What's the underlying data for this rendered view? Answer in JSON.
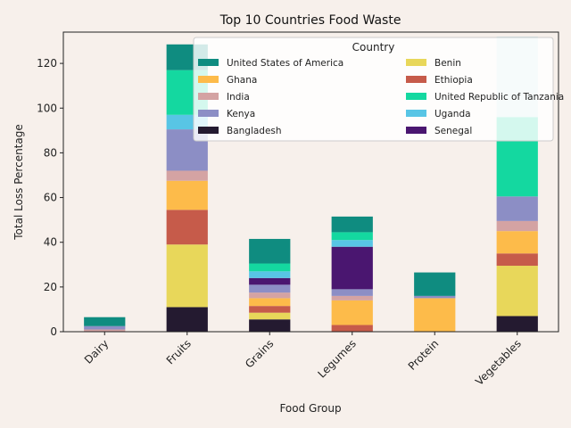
{
  "chart_data": {
    "type": "bar",
    "stacked": true,
    "title": "Top 10 Countries Food Waste",
    "xlabel": "Food Group",
    "ylabel": "Total Loss Percentage",
    "ylim": [
      0,
      134
    ],
    "yticks": [
      0,
      20,
      40,
      60,
      80,
      100,
      120
    ],
    "grid": false,
    "legend_title": "Country",
    "legend_position": "top-right",
    "categories": [
      "Dairy",
      "Fruits",
      "Grains",
      "Legumes",
      "Protein",
      "Vegetables"
    ],
    "series": [
      {
        "name": "Bangladesh",
        "color": "#241a30",
        "values": [
          0,
          11,
          5.5,
          0,
          0,
          7
        ]
      },
      {
        "name": "Benin",
        "color": "#e8d75a",
        "values": [
          0,
          28,
          3,
          0,
          0,
          22.5
        ]
      },
      {
        "name": "Ethiopia",
        "color": "#c65b4a",
        "values": [
          0,
          15.5,
          3,
          3,
          0,
          5.5
        ]
      },
      {
        "name": "Ghana",
        "color": "#fdbb4a",
        "values": [
          0,
          13,
          3.5,
          11,
          15,
          10
        ]
      },
      {
        "name": "India",
        "color": "#d4a3a3",
        "values": [
          1,
          4.5,
          2.5,
          2,
          0,
          4.5
        ]
      },
      {
        "name": "Kenya",
        "color": "#8c8ec5",
        "values": [
          1.5,
          18.5,
          3.5,
          3,
          1,
          11
        ]
      },
      {
        "name": "Senegal",
        "color": "#4a1670",
        "values": [
          0,
          0,
          3,
          19,
          0,
          0
        ]
      },
      {
        "name": "Uganda",
        "color": "#58c5e5",
        "values": [
          0,
          6.5,
          3,
          3,
          0,
          0
        ]
      },
      {
        "name": "United Republic of Tanzania",
        "color": "#14d8a0",
        "values": [
          0,
          20,
          3.5,
          3.5,
          0,
          35.5
        ]
      },
      {
        "name": "United States of America",
        "color": "#0f8c80",
        "values": [
          4,
          11.5,
          11,
          7,
          10.5,
          0
        ]
      },
      {
        "name": "",
        "color": "#cde6e8",
        "values": [
          0,
          0,
          0,
          0,
          0,
          36
        ]
      }
    ],
    "legend": [
      {
        "name": "United States of America",
        "color": "#0f8c80"
      },
      {
        "name": "Benin",
        "color": "#e8d75a"
      },
      {
        "name": "Ghana",
        "color": "#fdbb4a"
      },
      {
        "name": "Ethiopia",
        "color": "#c65b4a"
      },
      {
        "name": "India",
        "color": "#d4a3a3"
      },
      {
        "name": "United Republic of Tanzania",
        "color": "#14d8a0"
      },
      {
        "name": "Kenya",
        "color": "#8c8ec5"
      },
      {
        "name": "Uganda",
        "color": "#58c5e5"
      },
      {
        "name": "Bangladesh",
        "color": "#241a30"
      },
      {
        "name": "Senegal",
        "color": "#4a1670"
      }
    ]
  }
}
